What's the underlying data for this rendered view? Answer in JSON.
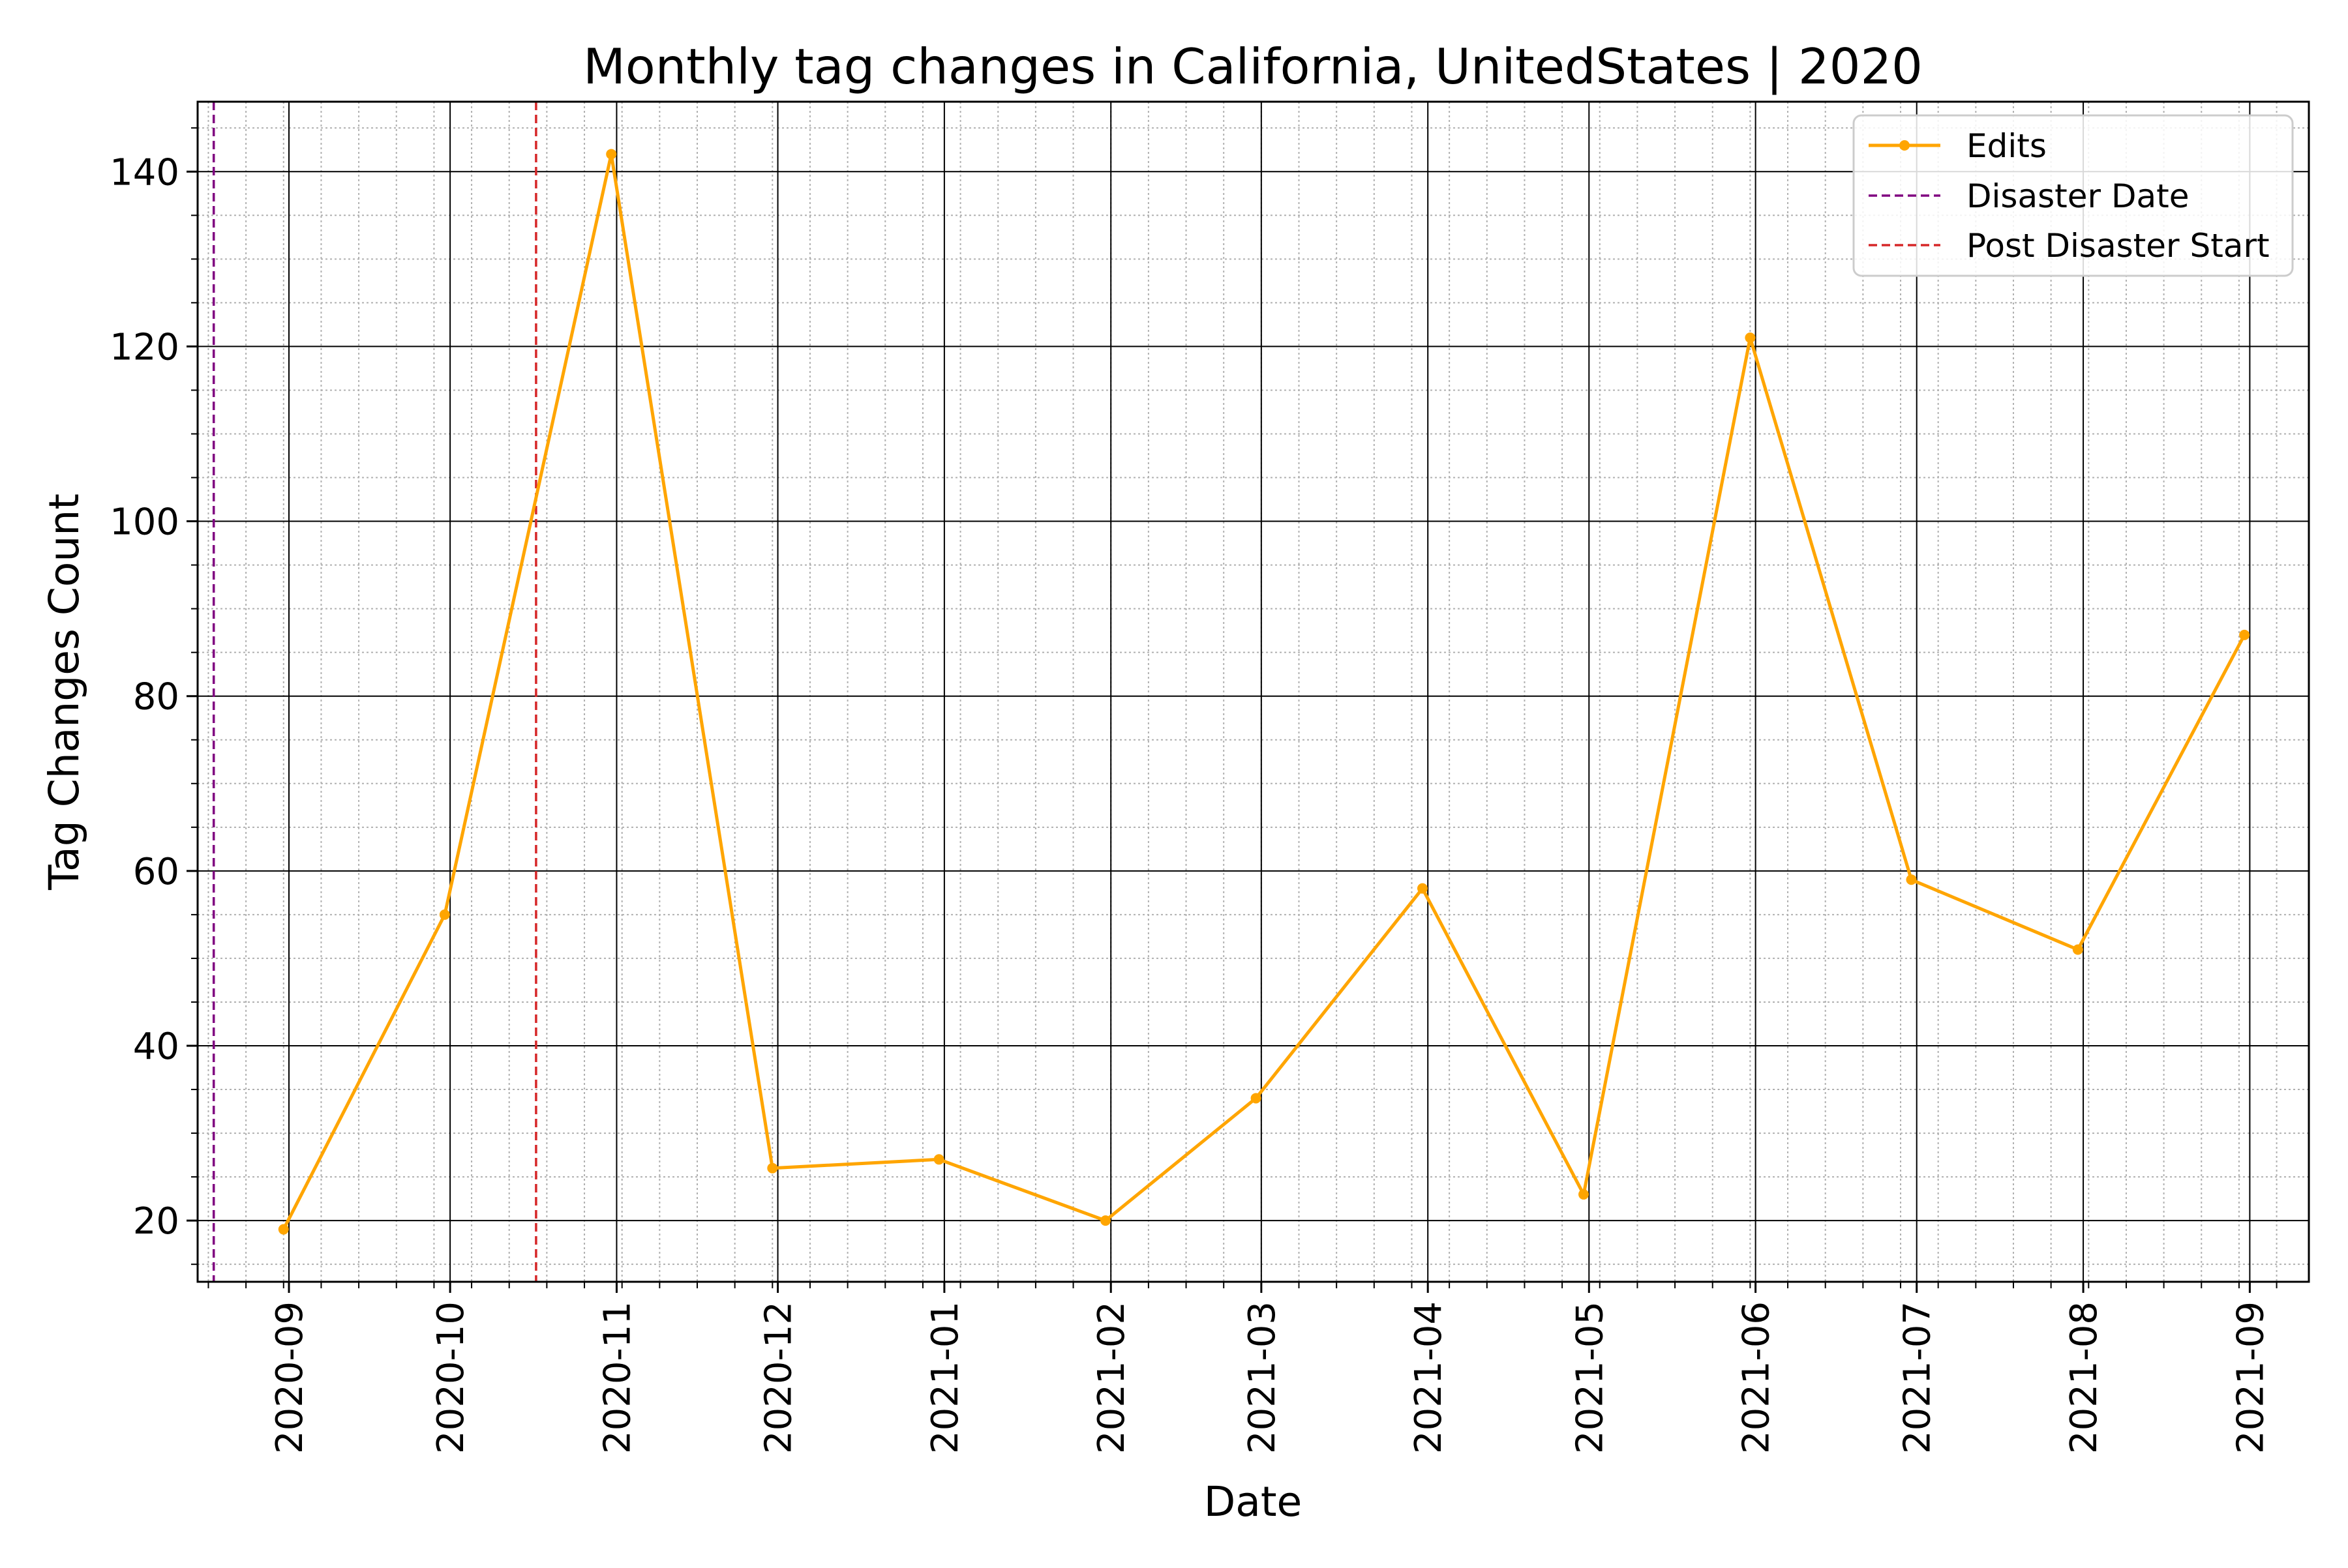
{
  "chart_data": {
    "type": "line",
    "title": "Monthly tag changes in California, UnitedStates | 2020",
    "xlabel": "Date",
    "ylabel": "Tag Changes Count",
    "x_axis_type": "date",
    "xlim": [
      "2020-08-15",
      "2021-09-12"
    ],
    "ylim": [
      13,
      148
    ],
    "x_ticks": [
      "2020-09",
      "2020-10",
      "2020-11",
      "2020-12",
      "2021-01",
      "2021-02",
      "2021-03",
      "2021-04",
      "2021-05",
      "2021-06",
      "2021-07",
      "2021-08",
      "2021-09"
    ],
    "y_ticks": [
      20,
      40,
      60,
      80,
      100,
      120,
      140
    ],
    "grid": {
      "major": true,
      "minor": true
    },
    "legend_position": "top-right",
    "series": [
      {
        "name": "Edits",
        "color": "#ffa500",
        "marker": "circle",
        "x": [
          "2020-08-31",
          "2020-09-30",
          "2020-10-31",
          "2020-11-30",
          "2020-12-31",
          "2021-01-31",
          "2021-02-28",
          "2021-03-31",
          "2021-04-30",
          "2021-05-31",
          "2021-06-30",
          "2021-07-31",
          "2021-08-31"
        ],
        "y": [
          19,
          55,
          142,
          26,
          27,
          20,
          34,
          58,
          23,
          121,
          59,
          51,
          87
        ]
      }
    ],
    "vertical_lines": [
      {
        "name": "Disaster Date",
        "x": "2020-08-18",
        "color": "#800080",
        "style": "dashed"
      },
      {
        "name": "Post Disaster Start",
        "x": "2020-10-17",
        "color": "#d62728",
        "style": "dashed"
      }
    ]
  }
}
